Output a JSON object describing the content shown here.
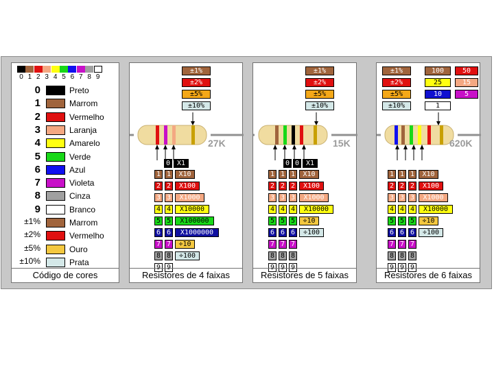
{
  "chart_panel": {
    "scale_digits": [
      "0",
      "1",
      "2",
      "3",
      "4",
      "5",
      "6",
      "7",
      "8",
      "9"
    ],
    "rows": [
      {
        "value": "0",
        "name": "Preto",
        "color": "#000000"
      },
      {
        "value": "1",
        "name": "Marrom",
        "color": "#a0643c"
      },
      {
        "value": "2",
        "name": "Vermelho",
        "color": "#e01010"
      },
      {
        "value": "3",
        "name": "Laranja",
        "color": "#f4a882"
      },
      {
        "value": "4",
        "name": "Amarelo",
        "color": "#ffff10"
      },
      {
        "value": "5",
        "name": "Verde",
        "color": "#18d818"
      },
      {
        "value": "6",
        "name": "Azul",
        "color": "#1010f0"
      },
      {
        "value": "7",
        "name": "Violeta",
        "color": "#c810c8"
      },
      {
        "value": "8",
        "name": "Cinza",
        "color": "#a0a0a0"
      },
      {
        "value": "9",
        "name": "Branco",
        "color": "#ffffff"
      },
      {
        "value": "±1%",
        "name": "Marrom",
        "color": "#a0643c"
      },
      {
        "value": "±2%",
        "name": "Vermelho",
        "color": "#e01010"
      },
      {
        "value": "±5%",
        "name": "Ouro",
        "color": "#f4c840"
      },
      {
        "value": "±10%",
        "name": "Prata",
        "color": "#d4e8e8"
      }
    ],
    "footer": "Código de cores"
  },
  "tolerances": [
    {
      "label": "±1%",
      "color": "#a0643c",
      "text": "#ffffff"
    },
    {
      "label": "±2%",
      "color": "#e01010",
      "text": "#ffffff"
    },
    {
      "label": "±5%",
      "color": "#f4a818",
      "text": "#000000"
    },
    {
      "label": "±10%",
      "color": "#d4e8e8",
      "text": "#000000"
    }
  ],
  "digit_cells": [
    {
      "d": "1",
      "color": "#a0643c",
      "text": "#ffffff"
    },
    {
      "d": "2",
      "color": "#e01010",
      "text": "#ffffff"
    },
    {
      "d": "3",
      "color": "#f4a882",
      "text": "#ffffff"
    },
    {
      "d": "4",
      "color": "#ffff10",
      "text": "#000000"
    },
    {
      "d": "5",
      "color": "#18d818",
      "text": "#000000"
    },
    {
      "d": "6",
      "color": "#1010a0",
      "text": "#ffffff"
    },
    {
      "d": "7",
      "color": "#c810c8",
      "text": "#ffffff"
    },
    {
      "d": "8",
      "color": "#a0a0a0",
      "text": "#000000"
    },
    {
      "d": "9",
      "color": "#ffffff",
      "text": "#000000"
    }
  ],
  "panel4": {
    "value_label": "27K",
    "header": [
      "0",
      "X1"
    ],
    "multipliers": [
      {
        "label": "X10",
        "color": "#a0643c",
        "text": "#ffffff"
      },
      {
        "label": "X100",
        "color": "#e01010",
        "text": "#ffffff"
      },
      {
        "label": "X1000",
        "color": "#f4a882",
        "text": "#ffffff"
      },
      {
        "label": "X10000",
        "color": "#ffff10",
        "text": "#000000"
      },
      {
        "label": "X100000",
        "color": "#18d818",
        "text": "#000000"
      },
      {
        "label": "X1000000",
        "color": "#1010a0",
        "text": "#ffffff"
      },
      {
        "label": "÷10",
        "color": "#f4c840",
        "text": "#000000"
      },
      {
        "label": "÷100",
        "color": "#d4e8e8",
        "text": "#000000"
      }
    ],
    "footer": "Resistores de 4 faixas"
  },
  "panel5": {
    "value_label": "15K",
    "header": [
      "0",
      "0",
      "X1"
    ],
    "multipliers": [
      {
        "label": "X10",
        "color": "#a0643c",
        "text": "#ffffff"
      },
      {
        "label": "X100",
        "color": "#e01010",
        "text": "#ffffff"
      },
      {
        "label": "X1000",
        "color": "#f4a882",
        "text": "#ffffff"
      },
      {
        "label": "X10000",
        "color": "#ffff10",
        "text": "#000000"
      },
      {
        "label": "÷10",
        "color": "#f4c840",
        "text": "#000000"
      },
      {
        "label": "÷100",
        "color": "#d4e8e8",
        "text": "#000000"
      }
    ],
    "footer": "Resistores de 5 faixas"
  },
  "panel6": {
    "value_label": "620K",
    "tempco": [
      {
        "label": "100",
        "color": "#a0643c",
        "text": "#ffffff"
      },
      {
        "label": "50",
        "color": "#e01010",
        "text": "#ffffff"
      },
      {
        "label": "25",
        "color": "#ffff10",
        "text": "#000000"
      },
      {
        "label": "15",
        "color": "#f4a882",
        "text": "#ffffff"
      },
      {
        "label": "10",
        "color": "#1010d0",
        "text": "#ffffff"
      },
      {
        "label": "5",
        "color": "#c810c8",
        "text": "#ffffff"
      },
      {
        "label": "1",
        "color": "#ffffff",
        "text": "#000000"
      }
    ],
    "multipliers": [
      {
        "label": "X10",
        "color": "#a0643c",
        "text": "#ffffff"
      },
      {
        "label": "X100",
        "color": "#e01010",
        "text": "#ffffff"
      },
      {
        "label": "X1000",
        "color": "#f4a882",
        "text": "#ffffff"
      },
      {
        "label": "X10000",
        "color": "#ffff10",
        "text": "#000000"
      },
      {
        "label": "÷10",
        "color": "#f4c840",
        "text": "#000000"
      },
      {
        "label": "÷100",
        "color": "#d4e8e8",
        "text": "#000000"
      }
    ],
    "footer": "Resistores de 6 faixas"
  }
}
